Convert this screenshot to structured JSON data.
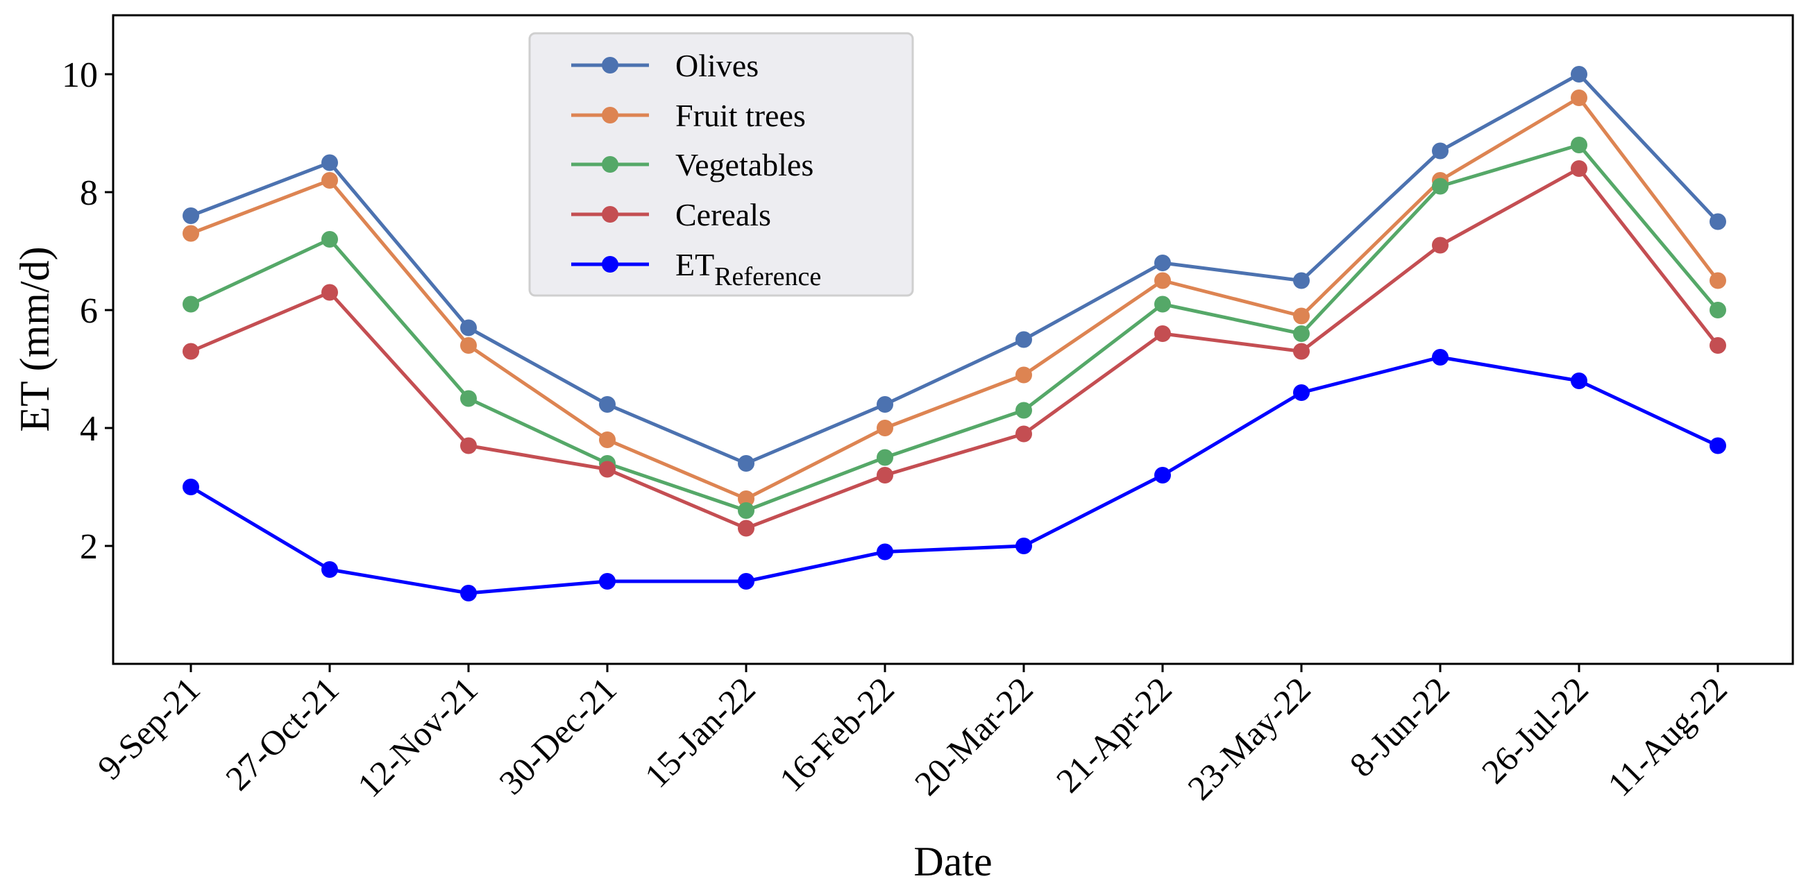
{
  "chart_data": {
    "type": "line",
    "title": "",
    "xlabel": "Date",
    "ylabel": "ET (mm/d)",
    "ylim": [
      0,
      11
    ],
    "yticks": [
      2,
      4,
      6,
      8,
      10
    ],
    "grid": false,
    "legend_position": "top-center-left",
    "categories": [
      "9-Sep-21",
      "27-Oct-21",
      "12-Nov-21",
      "30-Dec-21",
      "15-Jan-22",
      "16-Feb-22",
      "20-Mar-22",
      "21-Apr-22",
      "23-May-22",
      "8-Jun-22",
      "26-Jul-22",
      "11-Aug-22"
    ],
    "series": [
      {
        "name": "Olives",
        "color": "#4c72b0",
        "values": [
          7.6,
          8.5,
          5.7,
          4.4,
          3.4,
          4.4,
          5.5,
          6.8,
          6.5,
          8.7,
          10.0,
          7.5
        ]
      },
      {
        "name": "Fruit trees",
        "color": "#dd8452",
        "values": [
          7.3,
          8.2,
          5.4,
          3.8,
          2.8,
          4.0,
          4.9,
          6.5,
          5.9,
          8.2,
          9.6,
          6.5
        ]
      },
      {
        "name": "Vegetables",
        "color": "#55a868",
        "values": [
          6.1,
          7.2,
          4.5,
          3.4,
          2.6,
          3.5,
          4.3,
          6.1,
          5.6,
          8.1,
          8.8,
          6.0
        ]
      },
      {
        "name": "Cereals",
        "color": "#c44e52",
        "values": [
          5.3,
          6.3,
          3.7,
          3.3,
          2.3,
          3.2,
          3.9,
          5.6,
          5.3,
          7.1,
          8.4,
          5.4
        ]
      },
      {
        "name": "ET",
        "name_subscript": "Reference",
        "color": "#0000ff",
        "values": [
          3.0,
          1.6,
          1.2,
          1.4,
          1.4,
          1.9,
          2.0,
          3.2,
          4.6,
          5.2,
          4.8,
          3.7
        ]
      }
    ]
  }
}
